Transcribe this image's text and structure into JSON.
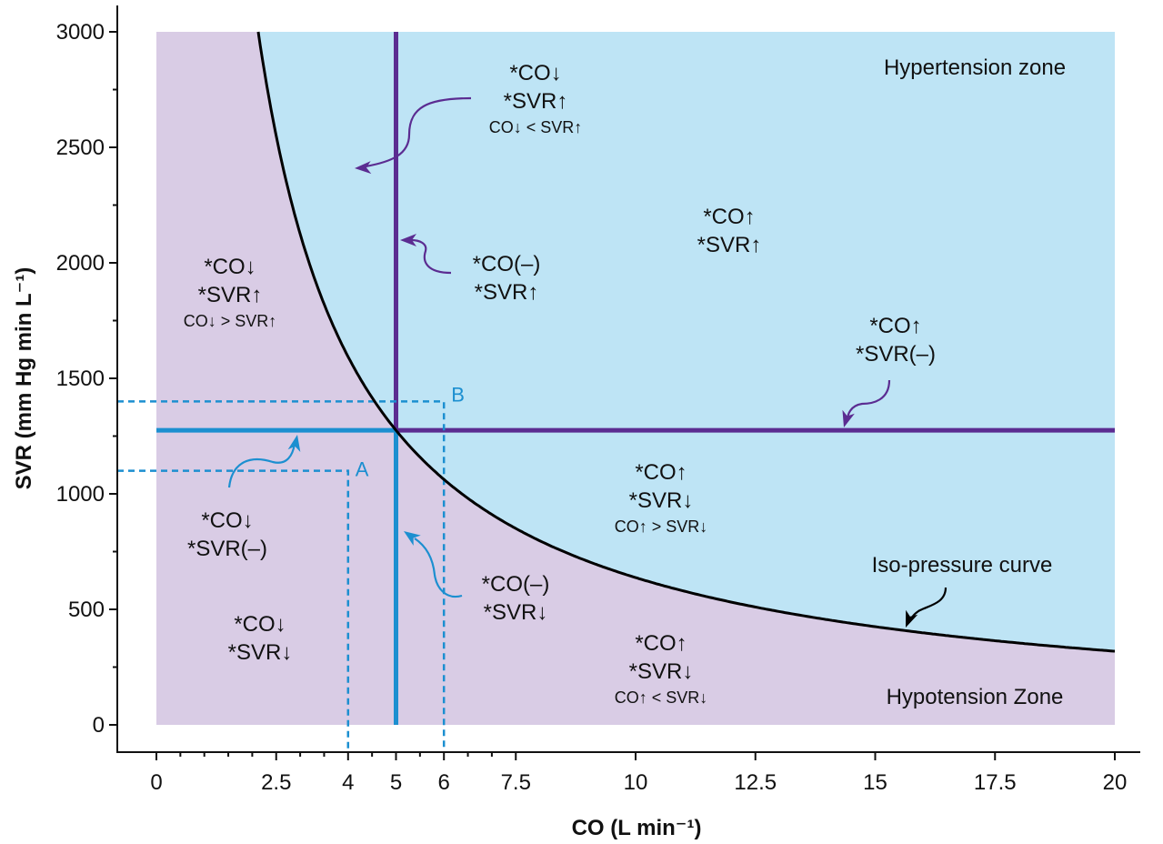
{
  "chart_data": {
    "type": "line",
    "xlabel": "CO (L min⁻¹)",
    "ylabel": "SVR (mm Hg min L⁻¹)",
    "xlim": [
      0,
      20
    ],
    "ylim": [
      0,
      3000
    ],
    "x_tick_labels": [
      "0",
      "2.5",
      "4",
      "5",
      "6",
      "7.5",
      "10",
      "12.5",
      "15",
      "17.5",
      "20"
    ],
    "x_tick_values": [
      0,
      2.5,
      4,
      5,
      6,
      7.5,
      10,
      12.5,
      15,
      17.5,
      20
    ],
    "x_minor_ticks": [
      0.5,
      1,
      1.5,
      2,
      3,
      3.5,
      4.5,
      5.5,
      6.5,
      7
    ],
    "y_tick_labels": [
      "0",
      "500",
      "1000",
      "1500",
      "2000",
      "2500",
      "3000"
    ],
    "y_tick_values": [
      0,
      500,
      1000,
      1500,
      2000,
      2500,
      3000
    ],
    "y_minor_ticks": [
      250,
      750,
      1250,
      1750,
      2250,
      2750
    ],
    "grid": false,
    "legend": "none",
    "iso_pressure_product": 6375,
    "series": [
      {
        "name": "Iso-pressure curve",
        "x": [
          2.125,
          2.5,
          3,
          3.5,
          4,
          4.5,
          5,
          5.5,
          6,
          7,
          8,
          9,
          10,
          12,
          14,
          16,
          18,
          20
        ],
        "y": [
          3000,
          2550,
          2125,
          1821,
          1594,
          1417,
          1275,
          1159,
          1063,
          911,
          797,
          708,
          638,
          531,
          455,
          398,
          354,
          319
        ]
      }
    ],
    "reference_lines": [
      {
        "orientation": "vertical",
        "x": 5,
        "y_from": 1275,
        "y_to": 3000,
        "color": "#5b2c91"
      },
      {
        "orientation": "horizontal",
        "y": 1275,
        "x_from": 5,
        "x_to": 20,
        "color": "#5b2c91"
      },
      {
        "orientation": "vertical",
        "x": 5,
        "y_from": 0,
        "y_to": 1275,
        "color": "#1c8fd0"
      },
      {
        "orientation": "horizontal",
        "y": 1275,
        "x_from": 0,
        "x_to": 5,
        "color": "#1c8fd0"
      }
    ],
    "points": [
      {
        "label": "A",
        "x": 4,
        "y": 1100
      },
      {
        "label": "B",
        "x": 6,
        "y": 1400
      }
    ],
    "zones": [
      {
        "label": "Hypertension zone",
        "color": "#bee4f5"
      },
      {
        "label": "Hypotension Zone",
        "color": "#d9cce5"
      }
    ],
    "annotations": [
      {
        "lines": [
          "*CO↓",
          "*SVR↑",
          "CO↓ < SVR↑"
        ]
      },
      {
        "lines": [
          "*CO↑",
          "*SVR↑"
        ]
      },
      {
        "lines": [
          "*CO(–)",
          "*SVR↑"
        ]
      },
      {
        "lines": [
          "*CO↓",
          "*SVR↑",
          "CO↓ > SVR↑"
        ]
      },
      {
        "lines": [
          "*CO↑",
          "*SVR(–)"
        ]
      },
      {
        "lines": [
          "*CO↑",
          "*SVR↓",
          "CO↑ > SVR↓"
        ]
      },
      {
        "lines": [
          "*CO↓",
          "*SVR(–)"
        ]
      },
      {
        "lines": [
          "*CO(–)",
          "*SVR↓"
        ]
      },
      {
        "lines": [
          "*CO↓",
          "*SVR↓"
        ]
      },
      {
        "lines": [
          "*CO↑",
          "*SVR↓",
          "CO↑ < SVR↓"
        ]
      },
      {
        "lines": [
          "Iso-pressure curve"
        ]
      }
    ]
  },
  "colors": {
    "hypertension_fill": "#bee4f5",
    "hypotension_fill": "#d9cce5",
    "purple": "#5b2c91",
    "blue": "#1c8fd0",
    "curve": "#000000"
  }
}
